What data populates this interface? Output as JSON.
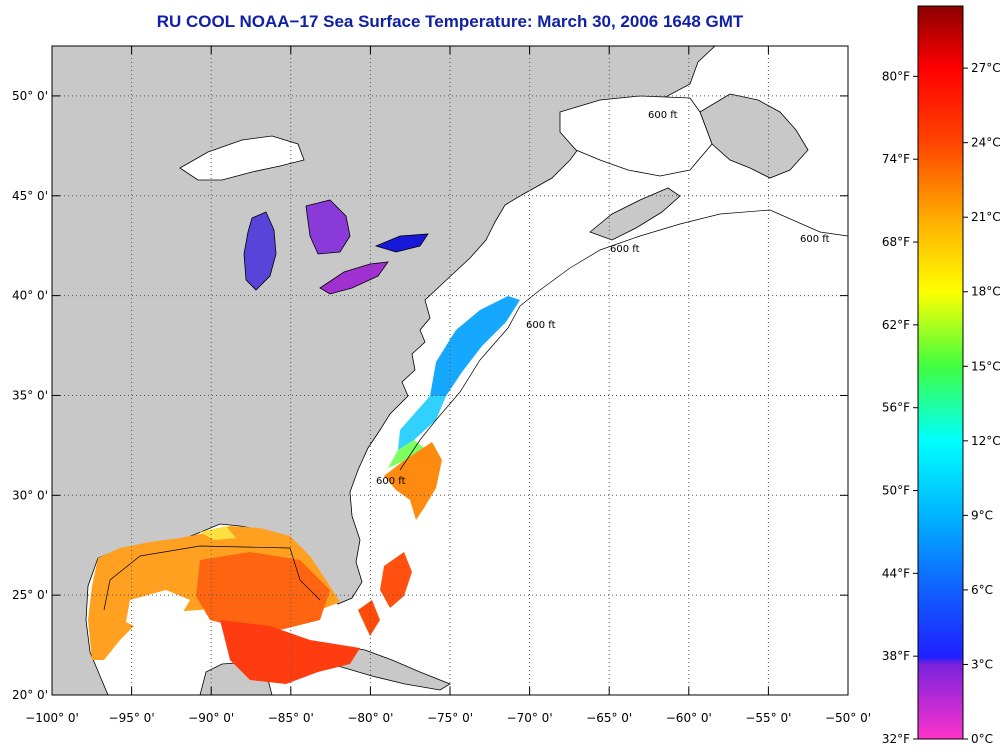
{
  "title": "RU COOL  NOAA−17  Sea Surface Temperature:  March 30, 2006 1648 GMT",
  "map": {
    "lon_range": [
      -100,
      -50
    ],
    "lat_range": [
      20,
      52.5
    ],
    "lon_ticks": [
      "−100° 0'",
      "−95° 0'",
      "−90° 0'",
      "−85° 0'",
      "−80° 0'",
      "−75° 0'",
      "−70° 0'",
      "−65° 0'",
      "−60° 0'",
      "−55° 0'",
      "−50° 0'"
    ],
    "lat_ticks": [
      "20° 0'",
      "25° 0'",
      "30° 0'",
      "35° 0'",
      "40° 0'",
      "45° 0'",
      "50° 0'"
    ],
    "contour_label": "600 ft",
    "colors": {
      "land": "#c8c8c8",
      "ocean": "#ffffff",
      "grid": "#555555"
    }
  },
  "colorbar": {
    "f_labels": [
      "32°F",
      "38°F",
      "44°F",
      "50°F",
      "56°F",
      "62°F",
      "68°F",
      "74°F",
      "80°F"
    ],
    "c_labels": [
      "0°C",
      "3°C",
      "6°C",
      "9°C",
      "12°C",
      "15°C",
      "18°C",
      "21°C",
      "24°C",
      "27°C"
    ],
    "stops": [
      {
        "c": 0,
        "color": "#ff33cc"
      },
      {
        "c": 3,
        "color": "#7a22dd"
      },
      {
        "c": 3.3,
        "color": "#2020ff"
      },
      {
        "c": 6,
        "color": "#1060ff"
      },
      {
        "c": 9,
        "color": "#00b4ff"
      },
      {
        "c": 12,
        "color": "#00ffff"
      },
      {
        "c": 15,
        "color": "#40ff40"
      },
      {
        "c": 18,
        "color": "#ffff00"
      },
      {
        "c": 21,
        "color": "#ffaa00"
      },
      {
        "c": 24,
        "color": "#ff4400"
      },
      {
        "c": 27,
        "color": "#ff0000"
      },
      {
        "c": 29.5,
        "color": "#8b0000"
      }
    ]
  }
}
